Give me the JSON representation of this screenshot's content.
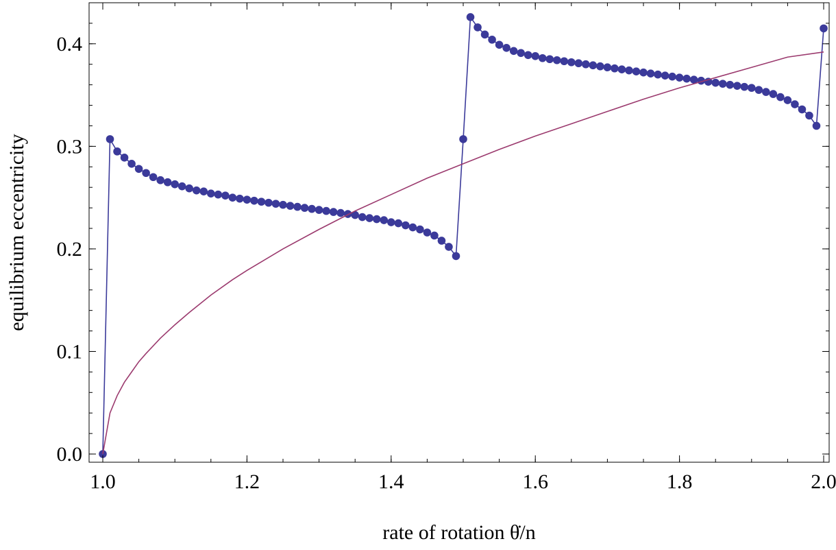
{
  "chart_data": {
    "type": "line",
    "title": "",
    "xlabel": "rate of rotation θ̇/n",
    "ylabel": "equilibrium eccentricity",
    "xlim": [
      1.0,
      2.0
    ],
    "ylim": [
      -0.008,
      0.44
    ],
    "x_ticks": [
      1.0,
      1.2,
      1.4,
      1.6,
      1.8,
      2.0
    ],
    "x_tick_labels": [
      "1.0",
      "1.2",
      "1.4",
      "1.6",
      "1.8",
      "2.0"
    ],
    "y_ticks": [
      0.0,
      0.1,
      0.2,
      0.3,
      0.4
    ],
    "y_tick_labels": [
      "0.0",
      "0.1",
      "0.2",
      "0.3",
      "0.4"
    ],
    "grid": false,
    "legend": "none",
    "series": [
      {
        "style": "line+markers",
        "color": "#3b3a9a",
        "x": [
          1.0,
          1.01,
          1.02,
          1.03,
          1.04,
          1.05,
          1.06,
          1.07,
          1.08,
          1.09,
          1.1,
          1.11,
          1.12,
          1.13,
          1.14,
          1.15,
          1.16,
          1.17,
          1.18,
          1.19,
          1.2,
          1.21,
          1.22,
          1.23,
          1.24,
          1.25,
          1.26,
          1.27,
          1.28,
          1.29,
          1.3,
          1.31,
          1.32,
          1.33,
          1.34,
          1.35,
          1.36,
          1.37,
          1.38,
          1.39,
          1.4,
          1.41,
          1.42,
          1.43,
          1.44,
          1.45,
          1.46,
          1.47,
          1.48,
          1.49,
          1.5,
          1.51,
          1.52,
          1.53,
          1.54,
          1.55,
          1.56,
          1.57,
          1.58,
          1.59,
          1.6,
          1.61,
          1.62,
          1.63,
          1.64,
          1.65,
          1.66,
          1.67,
          1.68,
          1.69,
          1.7,
          1.71,
          1.72,
          1.73,
          1.74,
          1.75,
          1.76,
          1.77,
          1.78,
          1.79,
          1.8,
          1.81,
          1.82,
          1.83,
          1.84,
          1.85,
          1.86,
          1.87,
          1.88,
          1.89,
          1.9,
          1.91,
          1.92,
          1.93,
          1.94,
          1.95,
          1.96,
          1.97,
          1.98,
          1.99,
          2.0
        ],
        "y": [
          0.0,
          0.307,
          0.295,
          0.289,
          0.283,
          0.278,
          0.274,
          0.27,
          0.267,
          0.265,
          0.263,
          0.261,
          0.259,
          0.257,
          0.256,
          0.254,
          0.253,
          0.252,
          0.25,
          0.249,
          0.248,
          0.247,
          0.246,
          0.245,
          0.244,
          0.243,
          0.242,
          0.241,
          0.24,
          0.239,
          0.238,
          0.237,
          0.236,
          0.235,
          0.234,
          0.233,
          0.231,
          0.23,
          0.229,
          0.228,
          0.226,
          0.225,
          0.223,
          0.221,
          0.219,
          0.216,
          0.213,
          0.208,
          0.202,
          0.193,
          0.307,
          0.426,
          0.416,
          0.409,
          0.404,
          0.399,
          0.396,
          0.393,
          0.391,
          0.389,
          0.388,
          0.386,
          0.385,
          0.384,
          0.383,
          0.382,
          0.381,
          0.38,
          0.379,
          0.378,
          0.377,
          0.376,
          0.375,
          0.374,
          0.373,
          0.372,
          0.371,
          0.37,
          0.369,
          0.368,
          0.367,
          0.366,
          0.365,
          0.364,
          0.363,
          0.362,
          0.361,
          0.36,
          0.359,
          0.358,
          0.357,
          0.355,
          0.353,
          0.351,
          0.348,
          0.345,
          0.341,
          0.336,
          0.33,
          0.32,
          0.415
        ]
      },
      {
        "style": "line",
        "color": "#9b3a6e",
        "x": [
          1.0,
          1.01,
          1.02,
          1.03,
          1.04,
          1.05,
          1.06,
          1.08,
          1.1,
          1.12,
          1.15,
          1.18,
          1.2,
          1.25,
          1.3,
          1.35,
          1.4,
          1.45,
          1.5,
          1.55,
          1.6,
          1.65,
          1.7,
          1.75,
          1.8,
          1.85,
          1.9,
          1.95,
          2.0
        ],
        "y": [
          0.0,
          0.04,
          0.057,
          0.07,
          0.08,
          0.09,
          0.098,
          0.113,
          0.126,
          0.138,
          0.155,
          0.17,
          0.179,
          0.2,
          0.219,
          0.237,
          0.253,
          0.269,
          0.283,
          0.297,
          0.31,
          0.322,
          0.334,
          0.346,
          0.357,
          0.367,
          0.377,
          0.387,
          0.392
        ]
      }
    ]
  }
}
